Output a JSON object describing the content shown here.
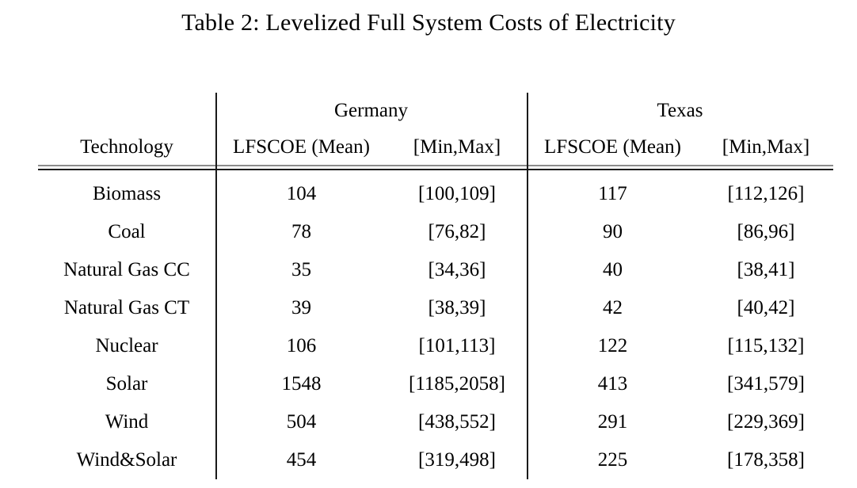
{
  "title": "Table 2: Levelized Full System Costs of Electricity",
  "table": {
    "group_headers": [
      "Germany",
      "Texas"
    ],
    "col_headers": {
      "technology": "Technology",
      "mean": "LFSCOE (Mean)",
      "minmax": "[Min,Max]"
    },
    "rows": [
      {
        "technology": "Biomass",
        "germany_mean": "104",
        "germany_minmax": "[100,109]",
        "texas_mean": "117",
        "texas_minmax": "[112,126]"
      },
      {
        "technology": "Coal",
        "germany_mean": "78",
        "germany_minmax": "[76,82]",
        "texas_mean": "90",
        "texas_minmax": "[86,96]"
      },
      {
        "technology": "Natural Gas CC",
        "germany_mean": "35",
        "germany_minmax": "[34,36]",
        "texas_mean": "40",
        "texas_minmax": "[38,41]"
      },
      {
        "technology": "Natural Gas CT",
        "germany_mean": "39",
        "germany_minmax": "[38,39]",
        "texas_mean": "42",
        "texas_minmax": "[40,42]"
      },
      {
        "technology": "Nuclear",
        "germany_mean": "106",
        "germany_minmax": "[101,113]",
        "texas_mean": "122",
        "texas_minmax": "[115,132]"
      },
      {
        "technology": "Solar",
        "germany_mean": "1548",
        "germany_minmax": "[1185,2058]",
        "texas_mean": "413",
        "texas_minmax": "[341,579]"
      },
      {
        "technology": "Wind",
        "germany_mean": "504",
        "germany_minmax": "[438,552]",
        "texas_mean": "291",
        "texas_minmax": "[229,369]"
      },
      {
        "technology": "Wind&Solar",
        "germany_mean": "454",
        "germany_minmax": "[319,498]",
        "texas_mean": "225",
        "texas_minmax": "[178,358]"
      }
    ]
  },
  "colors": {
    "text": "#000000",
    "background": "#ffffff",
    "rule_gray": "#8c8c8c",
    "rule_dark": "#1c1c1c"
  }
}
